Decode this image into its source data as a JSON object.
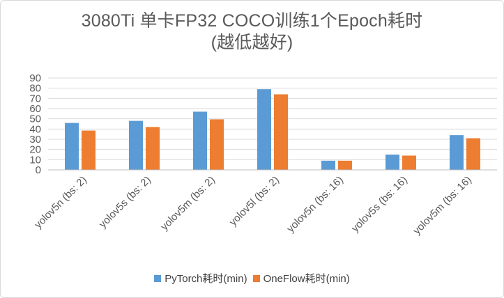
{
  "chart_data": {
    "type": "bar",
    "title": [
      "3080Ti 单卡FP32 COCO训练1个Epoch耗时",
      "(越低越好)"
    ],
    "categories": [
      "yolov5n (bs: 2)",
      "yolov5s (bs: 2)",
      "yolov5m (bs: 2)",
      "yolov5l (bs: 2)",
      "yolov5n (bs: 16)",
      "yolov5s (bs: 16)",
      "yolov5m (bs: 16)"
    ],
    "series": [
      {
        "name": "PyTorch耗时(min)",
        "color": "#5b9bd5",
        "values": [
          46,
          48,
          57,
          79,
          9,
          15,
          34
        ]
      },
      {
        "name": "OneFlow耗时(min)",
        "color": "#ed7d31",
        "values": [
          38.5,
          42,
          49.5,
          74,
          9,
          14,
          31
        ]
      }
    ],
    "ylim": [
      0,
      90
    ],
    "yticks": [
      "0",
      "10",
      "20",
      "30",
      "40",
      "50",
      "60",
      "70",
      "80",
      "90"
    ],
    "grid": true,
    "legend_position": "bottom"
  }
}
